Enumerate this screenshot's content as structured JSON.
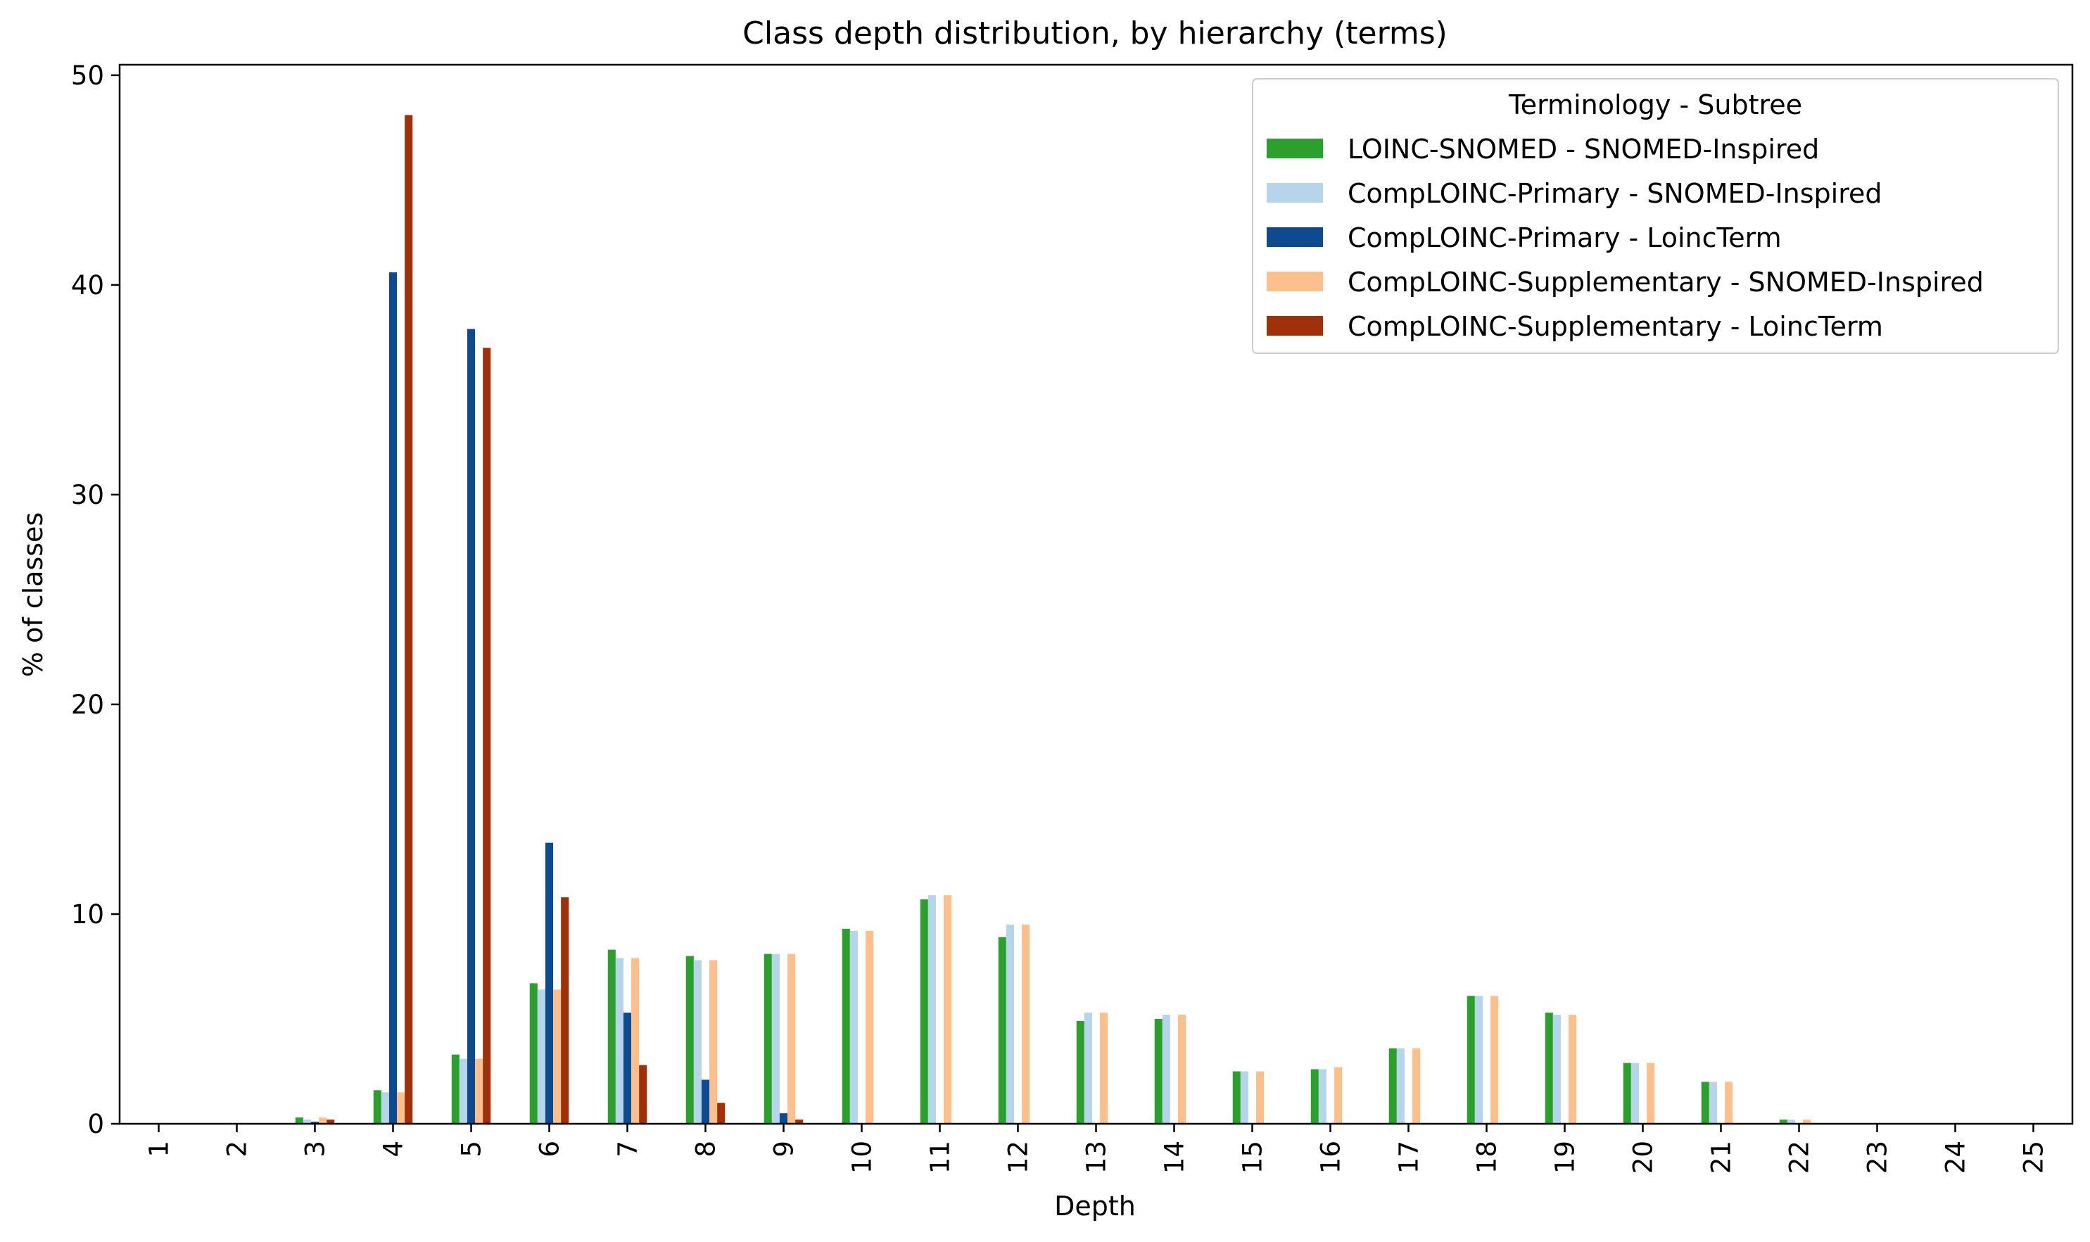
{
  "chart_data": {
    "type": "bar",
    "title": "Class depth distribution, by hierarchy (terms)",
    "xlabel": "Depth",
    "ylabel": "% of classes",
    "ylim": [
      0,
      50.5
    ],
    "yticks": [
      0,
      10,
      20,
      30,
      40,
      50
    ],
    "categories": [
      "1",
      "2",
      "3",
      "4",
      "5",
      "6",
      "7",
      "8",
      "9",
      "10",
      "11",
      "12",
      "13",
      "14",
      "15",
      "16",
      "17",
      "18",
      "19",
      "20",
      "21",
      "22",
      "23",
      "24",
      "25"
    ],
    "legend": {
      "title": "Terminology - Subtree",
      "placement": "top-right"
    },
    "grid": false,
    "series": [
      {
        "name": "LOINC-SNOMED - SNOMED-Inspired",
        "color": "#2ca02c",
        "values": [
          0,
          0,
          0.3,
          1.6,
          3.3,
          6.7,
          8.3,
          8.0,
          8.1,
          9.3,
          10.7,
          8.9,
          4.9,
          5.0,
          2.5,
          2.6,
          3.6,
          6.1,
          5.3,
          2.9,
          2.0,
          0.2,
          0,
          0,
          0
        ]
      },
      {
        "name": "CompLOINC-Primary - SNOMED-Inspired",
        "color": "#b6d4ea",
        "values": [
          0,
          0,
          0.2,
          1.5,
          3.1,
          6.4,
          7.9,
          7.8,
          8.1,
          9.2,
          10.9,
          9.5,
          5.3,
          5.2,
          2.5,
          2.6,
          3.6,
          6.1,
          5.2,
          2.9,
          2.0,
          0.2,
          0,
          0,
          0
        ]
      },
      {
        "name": "CompLOINC-Primary - LoincTerm",
        "color": "#0d4a8f",
        "values": [
          0,
          0,
          0.1,
          40.6,
          37.9,
          13.4,
          5.3,
          2.1,
          0.5,
          0,
          0,
          0,
          0,
          0,
          0,
          0,
          0,
          0,
          0,
          0,
          0,
          0,
          0,
          0,
          0
        ]
      },
      {
        "name": "CompLOINC-Supplementary - SNOMED-Inspired",
        "color": "#fdc08c",
        "values": [
          0,
          0,
          0.3,
          1.5,
          3.1,
          6.4,
          7.9,
          7.8,
          8.1,
          9.2,
          10.9,
          9.5,
          5.3,
          5.2,
          2.5,
          2.7,
          3.6,
          6.1,
          5.2,
          2.9,
          2.0,
          0.2,
          0,
          0,
          0
        ]
      },
      {
        "name": "CompLOINC-Supplementary - LoincTerm",
        "color": "#a0300a",
        "values": [
          0,
          0,
          0.2,
          48.1,
          37.0,
          10.8,
          2.8,
          1.0,
          0.2,
          0,
          0,
          0,
          0,
          0,
          0,
          0,
          0,
          0,
          0,
          0,
          0,
          0,
          0,
          0,
          0
        ]
      }
    ]
  }
}
